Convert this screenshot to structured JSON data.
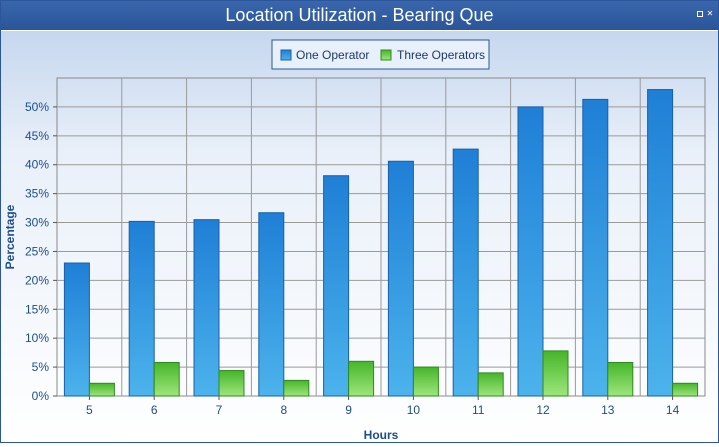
{
  "window": {
    "title": "Location Utilization - Bearing Que"
  },
  "colors": {
    "titlebar": "#2b579a",
    "one_operator_top": "#1f7fd6",
    "one_operator_bottom": "#4cb3ec",
    "three_operators_top": "#46b52b",
    "three_operators_bottom": "#9ee67b",
    "axis_text": "#1d4e8c",
    "grid": "#8a8a8a"
  },
  "chart_data": {
    "type": "bar",
    "title": "",
    "xlabel": "Hours",
    "ylabel": "Percentage",
    "categories": [
      "5",
      "6",
      "7",
      "8",
      "9",
      "10",
      "11",
      "12",
      "13",
      "14"
    ],
    "series": [
      {
        "name": "One Operator",
        "values": [
          23.0,
          30.2,
          30.5,
          31.7,
          38.1,
          40.6,
          42.7,
          50.0,
          51.3,
          53.0
        ]
      },
      {
        "name": "Three Operators",
        "values": [
          2.2,
          5.8,
          4.4,
          2.7,
          6.0,
          5.0,
          4.0,
          7.8,
          5.8,
          2.2
        ]
      }
    ],
    "ylim": [
      0,
      55
    ],
    "yticks": [
      "0%",
      "5%",
      "10%",
      "15%",
      "20%",
      "25%",
      "30%",
      "35%",
      "40%",
      "45%",
      "50%"
    ],
    "grid": true,
    "legend_position": "top-center"
  }
}
